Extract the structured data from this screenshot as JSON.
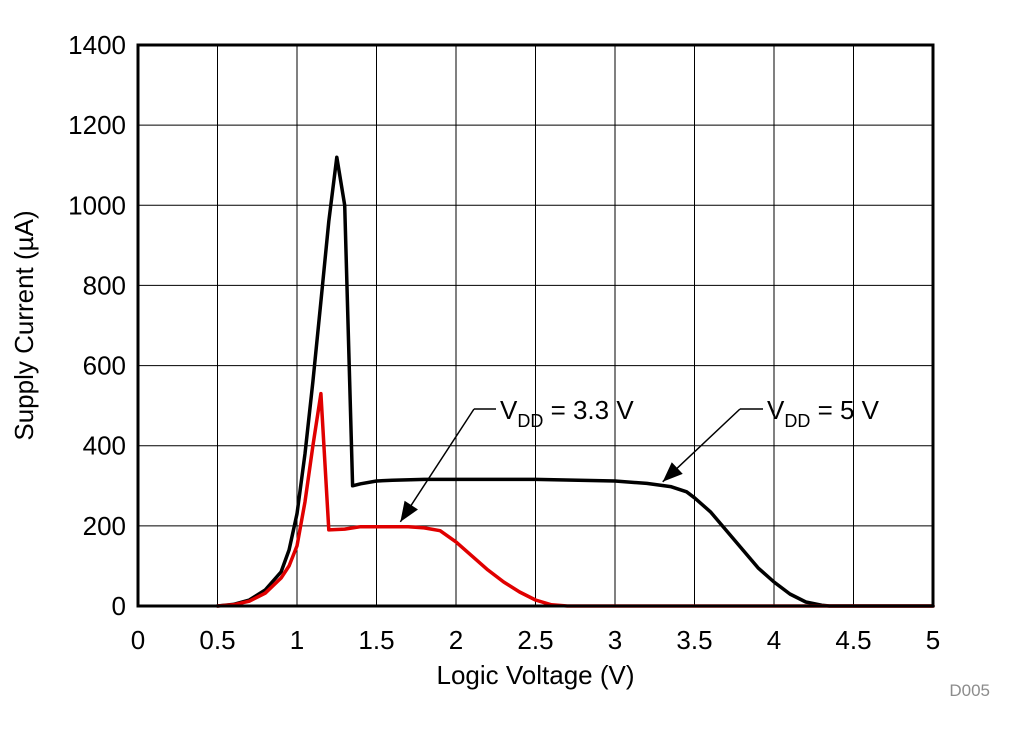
{
  "chart_data": {
    "type": "line",
    "title": "",
    "xlabel": "Logic Voltage (V)",
    "ylabel": "Supply Current (µA)",
    "xlim": [
      0,
      5
    ],
    "ylim": [
      0,
      1400
    ],
    "xticks": [
      "0",
      "0.5",
      "1",
      "1.5",
      "2",
      "2.5",
      "3",
      "3.5",
      "4",
      "4.5",
      "5"
    ],
    "yticks": [
      "0",
      "200",
      "400",
      "600",
      "800",
      "1000",
      "1200",
      "1400"
    ],
    "grid": true,
    "legend": "none",
    "series": [
      {
        "name": "VDD = 5 V",
        "color": "#000000",
        "points": [
          [
            0.5,
            0
          ],
          [
            0.6,
            4
          ],
          [
            0.7,
            15
          ],
          [
            0.8,
            40
          ],
          [
            0.9,
            85
          ],
          [
            0.95,
            140
          ],
          [
            1.0,
            230
          ],
          [
            1.05,
            380
          ],
          [
            1.1,
            560
          ],
          [
            1.15,
            760
          ],
          [
            1.2,
            960
          ],
          [
            1.25,
            1120
          ],
          [
            1.3,
            1000
          ],
          [
            1.35,
            300
          ],
          [
            1.4,
            305
          ],
          [
            1.5,
            312
          ],
          [
            1.6,
            314
          ],
          [
            1.8,
            316
          ],
          [
            2.0,
            316
          ],
          [
            2.5,
            316
          ],
          [
            3.0,
            312
          ],
          [
            3.2,
            306
          ],
          [
            3.35,
            298
          ],
          [
            3.45,
            285
          ],
          [
            3.5,
            270
          ],
          [
            3.6,
            235
          ],
          [
            3.75,
            165
          ],
          [
            3.9,
            95
          ],
          [
            4.0,
            60
          ],
          [
            4.1,
            30
          ],
          [
            4.2,
            10
          ],
          [
            4.3,
            2
          ],
          [
            4.35,
            0
          ],
          [
            5.0,
            0
          ]
        ]
      },
      {
        "name": "VDD = 3.3 V",
        "color": "#e00000",
        "points": [
          [
            0.5,
            0
          ],
          [
            0.6,
            3
          ],
          [
            0.7,
            12
          ],
          [
            0.8,
            32
          ],
          [
            0.9,
            70
          ],
          [
            0.95,
            100
          ],
          [
            1.0,
            150
          ],
          [
            1.05,
            260
          ],
          [
            1.1,
            400
          ],
          [
            1.15,
            530
          ],
          [
            1.2,
            190
          ],
          [
            1.3,
            192
          ],
          [
            1.4,
            198
          ],
          [
            1.5,
            198
          ],
          [
            1.7,
            198
          ],
          [
            1.8,
            195
          ],
          [
            1.9,
            188
          ],
          [
            2.0,
            160
          ],
          [
            2.1,
            125
          ],
          [
            2.2,
            90
          ],
          [
            2.3,
            60
          ],
          [
            2.4,
            35
          ],
          [
            2.5,
            15
          ],
          [
            2.6,
            3
          ],
          [
            2.7,
            0
          ],
          [
            5.0,
            0
          ]
        ]
      }
    ],
    "annotations": [
      {
        "base": "V",
        "sub": "DD",
        "rest": " = 3.3 V",
        "arrow_to": [
          1.65,
          200
        ]
      },
      {
        "base": "V",
        "sub": "DD",
        "rest": " = 5 V",
        "arrow_to": [
          3.3,
          300
        ]
      }
    ],
    "code_label": "D005"
  }
}
